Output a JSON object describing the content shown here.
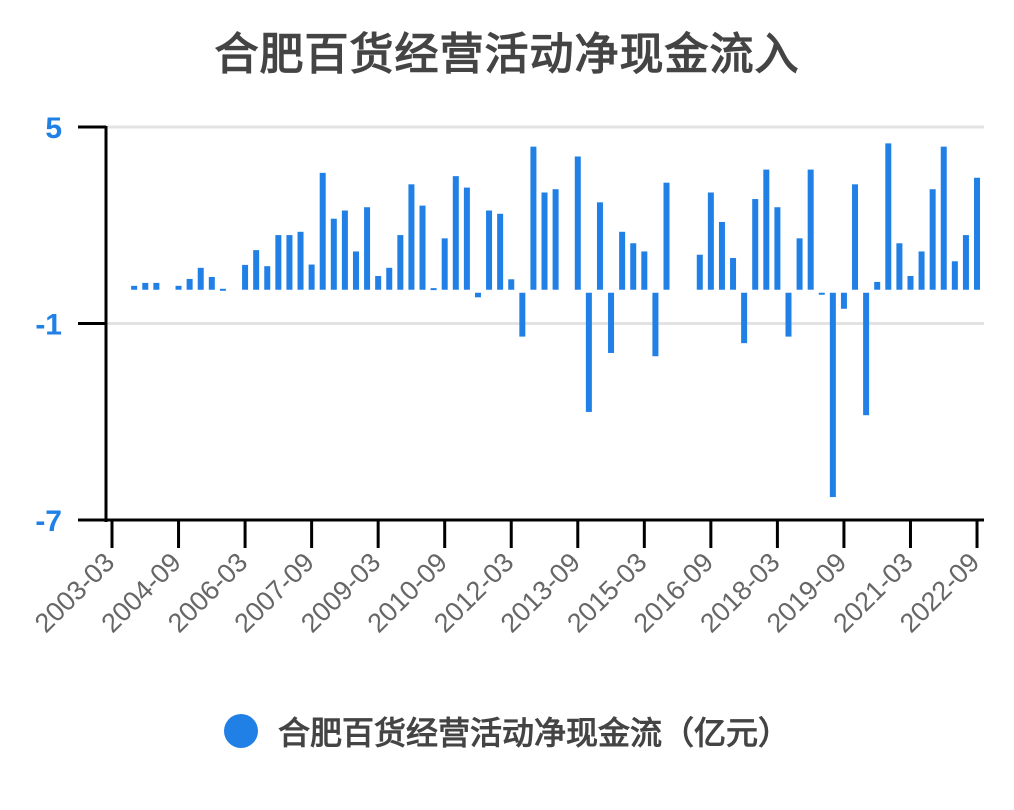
{
  "chart_data": {
    "type": "bar",
    "title": "合肥百货经营活动净现金流入",
    "xlabel": "",
    "ylabel": "",
    "ylim": [
      -7,
      5
    ],
    "yticks": [
      5,
      -1,
      -7
    ],
    "grid": true,
    "legend_position": "bottom",
    "xtick_labels": [
      "2003-03",
      "2004-09",
      "2006-03",
      "2007-09",
      "2009-03",
      "2010-09",
      "2012-03",
      "2013-09",
      "2015-03",
      "2016-09",
      "2018-03",
      "2019-09",
      "2021-03",
      "2022-09"
    ],
    "series": [
      {
        "name": "合肥百货经营活动净现金流（亿元）",
        "color": "#2080E5",
        "x": [
          "2003-03",
          "2003-06",
          "2003-09",
          "2003-12",
          "2004-03",
          "2004-06",
          "2004-09",
          "2004-12",
          "2005-03",
          "2005-06",
          "2005-09",
          "2005-12",
          "2006-03",
          "2006-06",
          "2006-09",
          "2006-12",
          "2007-03",
          "2007-06",
          "2007-09",
          "2007-12",
          "2008-03",
          "2008-06",
          "2008-09",
          "2008-12",
          "2009-03",
          "2009-06",
          "2009-09",
          "2009-12",
          "2010-03",
          "2010-06",
          "2010-09",
          "2010-12",
          "2011-03",
          "2011-06",
          "2011-09",
          "2011-12",
          "2012-03",
          "2012-06",
          "2012-09",
          "2012-12",
          "2013-03",
          "2013-06",
          "2013-09",
          "2013-12",
          "2014-03",
          "2014-06",
          "2014-09",
          "2014-12",
          "2015-03",
          "2015-06",
          "2015-09",
          "2015-12",
          "2016-03",
          "2016-06",
          "2016-09",
          "2016-12",
          "2017-03",
          "2017-06",
          "2017-09",
          "2017-12",
          "2018-03",
          "2018-06",
          "2018-09",
          "2018-12",
          "2019-03",
          "2019-06",
          "2019-09",
          "2019-12",
          "2020-03",
          "2020-06",
          "2020-09",
          "2020-12",
          "2021-03",
          "2021-06",
          "2021-09",
          "2021-12",
          "2022-03",
          "2022-06",
          "2022-09"
        ],
        "values": [
          null,
          null,
          0.15,
          0.24,
          0.24,
          null,
          0.15,
          0.36,
          0.7,
          0.42,
          0.06,
          null,
          0.79,
          1.24,
          0.75,
          1.7,
          1.7,
          1.8,
          0.8,
          3.6,
          2.2,
          2.45,
          1.2,
          2.55,
          0.45,
          0.7,
          1.7,
          3.25,
          2.6,
          0.08,
          1.6,
          3.5,
          3.15,
          -0.2,
          2.45,
          2.35,
          0.35,
          -1.4,
          4.4,
          3.0,
          3.1,
          null,
          4.1,
          -3.7,
          2.7,
          -1.9,
          1.8,
          1.45,
          1.2,
          -2.0,
          3.3,
          null,
          null,
          1.1,
          3.0,
          2.1,
          1.0,
          -1.6,
          2.8,
          3.7,
          2.55,
          -1.4,
          1.6,
          3.7,
          -0.08,
          -6.3,
          -0.55,
          3.25,
          -3.8,
          0.27,
          4.5,
          1.45,
          0.45,
          1.2,
          3.1,
          4.4,
          0.9,
          1.7,
          3.45
        ]
      }
    ]
  },
  "colors": {
    "bar": "#2080E5",
    "ytick_label": "#2080E5",
    "xtick_label": "#666666",
    "axis": "#000000",
    "grid": "#e3e3e3",
    "title": "#444444"
  },
  "legend": {
    "label": "合肥百货经营活动净现金流（亿元）"
  }
}
